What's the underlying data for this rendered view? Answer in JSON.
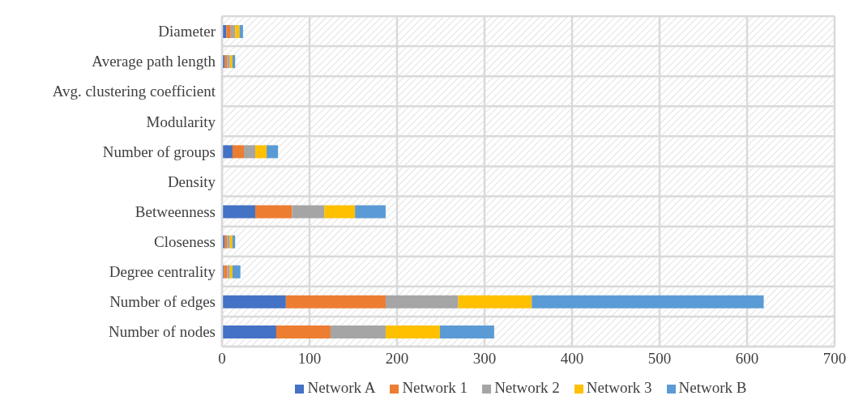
{
  "chart_data": {
    "type": "bar",
    "orientation": "horizontal",
    "stacked": true,
    "categories": [
      "Diameter",
      "Average path length",
      "Avg. clustering coefficient",
      "Modularity",
      "Number of groups",
      "Density",
      "Betweenness",
      "Closeness",
      "Degree centrality",
      "Number of edges",
      "Number of nodes"
    ],
    "series": [
      {
        "name": "Network A",
        "color": "#4472c4",
        "values": [
          5,
          3,
          null,
          null,
          12,
          null,
          38,
          3,
          2,
          73,
          62
        ]
      },
      {
        "name": "Network 1",
        "color": "#ed7d31",
        "values": [
          5,
          3,
          null,
          null,
          13,
          null,
          42,
          3,
          4,
          114,
          62
        ]
      },
      {
        "name": "Network 2",
        "color": "#a5a5a5",
        "values": [
          5,
          3,
          null,
          null,
          13,
          null,
          37,
          3,
          3,
          83,
          63
        ]
      },
      {
        "name": "Network 3",
        "color": "#ffc000",
        "values": [
          5,
          3,
          null,
          null,
          13,
          null,
          35,
          3,
          3,
          84,
          62
        ]
      },
      {
        "name": "Network B",
        "color": "#5b9bd5",
        "values": [
          4,
          3,
          null,
          null,
          13,
          null,
          35,
          3,
          9,
          265,
          62
        ]
      }
    ],
    "xlim": [
      0,
      700
    ],
    "xticks": [
      0,
      100,
      200,
      300,
      400,
      500,
      600,
      700
    ],
    "grid": true,
    "legend": "bottom"
  }
}
